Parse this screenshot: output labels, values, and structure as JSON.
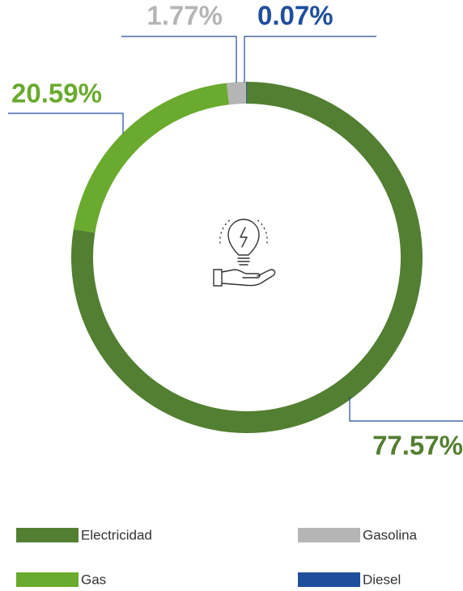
{
  "chart_data": {
    "type": "donut",
    "categories": [
      "Electricidad",
      "Gas",
      "Gasolina",
      "Diesel"
    ],
    "values": [
      77.57,
      20.59,
      1.77,
      0.07
    ],
    "value_labels": [
      "77.57%",
      "20.59%",
      "1.77%",
      "0.07%"
    ],
    "colors": [
      "#527f31",
      "#6aaa2e",
      "#b5b5b5",
      "#1f4e9c"
    ]
  }
}
